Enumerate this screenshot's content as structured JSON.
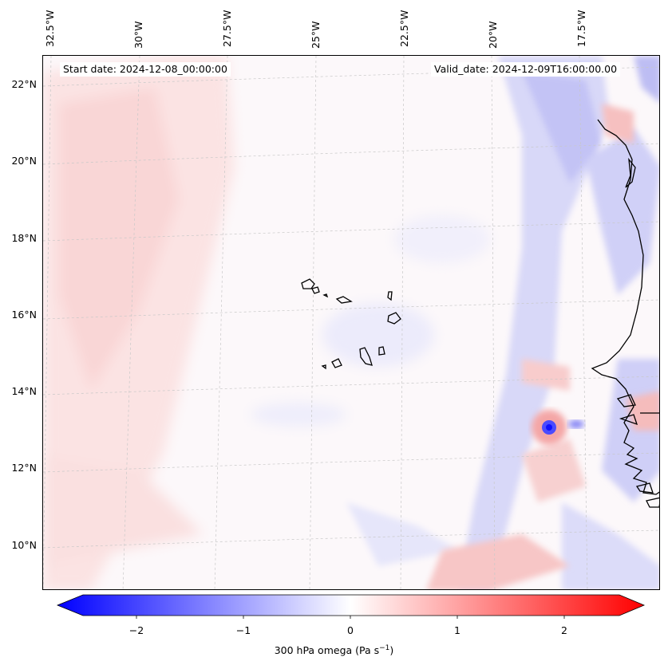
{
  "map": {
    "start_date": "Start date: 2024-12-08_00:00:00",
    "valid_date": "Valid_date: 2024-12-09T16:00:00.00",
    "longitude_labels": [
      "32.5°W",
      "30°W",
      "27.5°W",
      "25°W",
      "22.5°W",
      "20°W",
      "17.5°W"
    ],
    "latitude_labels": [
      "22°N",
      "20°N",
      "18°N",
      "16°N",
      "14°N",
      "12°N",
      "10°N"
    ],
    "colorbar_ticks": [
      "−2",
      "−1",
      "0",
      "1",
      "2"
    ],
    "colorbar_label_main": "300 hPa omega (Pa s",
    "colorbar_label_exp": "−1",
    "colorbar_label_end": ")",
    "colormap": [
      "#0000ff",
      "#ffffff",
      "#ff0000"
    ],
    "features": [
      "coastline",
      "cape-verde-islands",
      "gridlines",
      "omega-field"
    ]
  }
}
